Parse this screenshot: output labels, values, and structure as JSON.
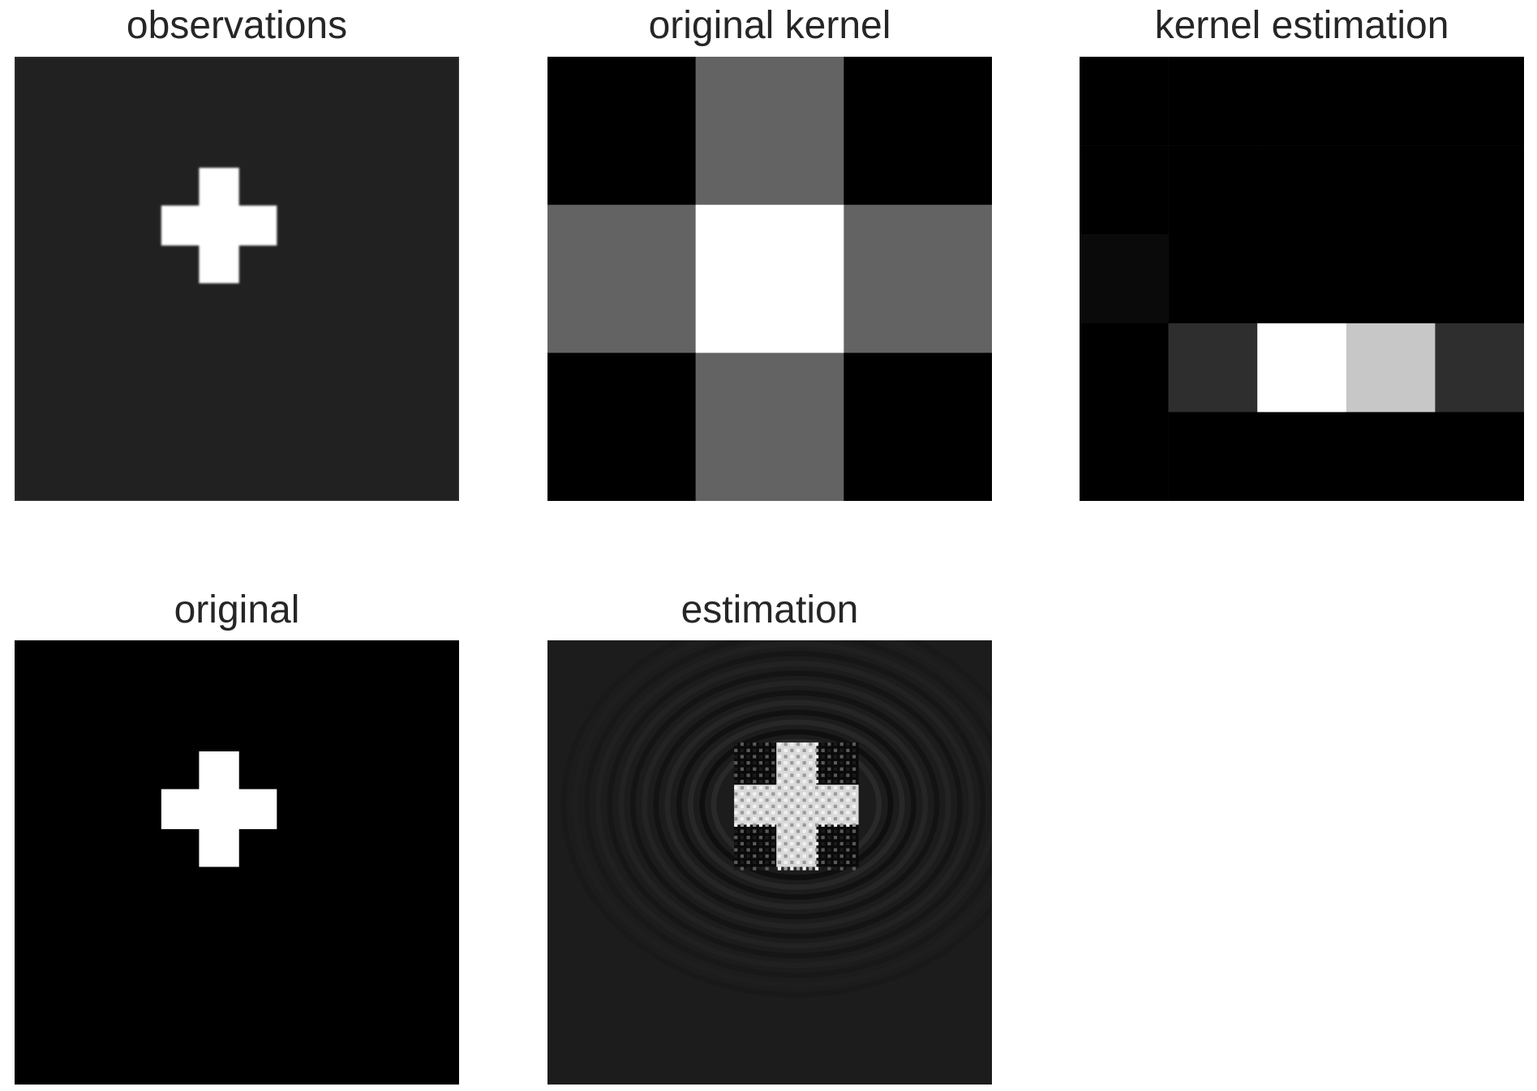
{
  "chart_data": [
    {
      "type": "heatmap",
      "title": "observations",
      "background_gray": 0.13,
      "cross": {
        "center": [
          0.46,
          0.38
        ],
        "arm_length": 0.26,
        "arm_width": 0.09,
        "value": 1.0,
        "blurred": true
      },
      "grid": false,
      "colormap": "gray"
    },
    {
      "type": "heatmap",
      "title": "original kernel",
      "rows": 3,
      "cols": 3,
      "values": [
        [
          0,
          0.39,
          0
        ],
        [
          0.39,
          1,
          0.39
        ],
        [
          0,
          0.39,
          0
        ]
      ],
      "grid": false,
      "colormap": "gray"
    },
    {
      "type": "heatmap",
      "title": "kernel estimation",
      "rows": 5,
      "cols": 5,
      "values": [
        [
          0,
          0,
          0,
          0,
          0
        ],
        [
          0,
          0,
          0,
          0,
          0
        ],
        [
          0.04,
          0,
          0,
          0,
          0
        ],
        [
          0,
          0.18,
          1,
          0.78,
          0.18
        ],
        [
          0,
          0,
          0,
          0,
          0
        ]
      ],
      "grid": false,
      "colormap": "gray"
    },
    {
      "type": "heatmap",
      "title": "original",
      "background_gray": 0.0,
      "cross": {
        "center": [
          0.46,
          0.38
        ],
        "arm_length": 0.26,
        "arm_width": 0.09,
        "value": 1.0,
        "blurred": false
      },
      "grid": false,
      "colormap": "gray"
    },
    {
      "type": "heatmap",
      "title": "estimation",
      "background_gray": 0.11,
      "cross": {
        "center": [
          0.56,
          0.37
        ],
        "arm_length": 0.28,
        "arm_width": 0.09,
        "value": 0.85,
        "ringing": true
      },
      "grid": false,
      "colormap": "gray"
    }
  ]
}
